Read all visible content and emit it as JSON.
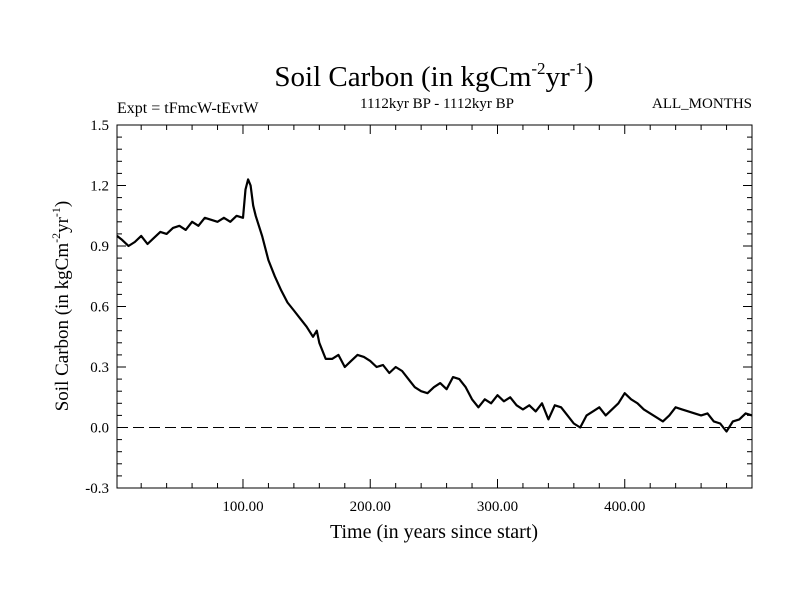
{
  "chart_data": {
    "type": "line",
    "title_main": "Soil Carbon (in kgCm",
    "title_sup1": "-2",
    "title_mid": "yr",
    "title_sup2": "-1",
    "title_end": ")",
    "subtitle_left": "Expt = tFmcW-tEvtW",
    "subtitle_center": "1112kyr BP - 1112kyr BP",
    "subtitle_right": "ALL_MONTHS",
    "xlabel": "Time (in years since start)",
    "ylabel_main": "Soil Carbon (in kgCm",
    "ylabel_sup1": "-2",
    "ylabel_mid": "yr",
    "ylabel_sup2": "-1",
    "ylabel_end": ")",
    "xlim": [
      1,
      500
    ],
    "ylim": [
      -0.3,
      1.5
    ],
    "xticks": [
      100,
      200,
      300,
      400
    ],
    "xtick_labels": [
      "100.00",
      "200.00",
      "300.00",
      "400.00"
    ],
    "yticks": [
      -0.3,
      0.0,
      0.3,
      0.6,
      0.9,
      1.2,
      1.5
    ],
    "ytick_labels": [
      "-0.3",
      "0.0",
      "0.3",
      "0.6",
      "0.9",
      "1.2",
      "1.5"
    ],
    "reference_line": 0.0,
    "series": [
      {
        "name": "Soil Carbon",
        "x": [
          1,
          5,
          10,
          15,
          20,
          25,
          30,
          35,
          40,
          45,
          50,
          55,
          60,
          65,
          70,
          75,
          80,
          85,
          90,
          95,
          100,
          102,
          104,
          106,
          108,
          110,
          115,
          120,
          125,
          130,
          135,
          140,
          145,
          150,
          155,
          158,
          160,
          165,
          170,
          175,
          180,
          185,
          190,
          195,
          200,
          205,
          210,
          215,
          220,
          225,
          230,
          235,
          240,
          245,
          250,
          255,
          260,
          265,
          270,
          275,
          280,
          285,
          290,
          295,
          300,
          305,
          310,
          315,
          320,
          325,
          330,
          335,
          340,
          345,
          350,
          355,
          360,
          365,
          370,
          375,
          380,
          385,
          390,
          395,
          400,
          405,
          410,
          415,
          420,
          425,
          430,
          435,
          440,
          445,
          450,
          455,
          460,
          465,
          470,
          475,
          480,
          485,
          490,
          495,
          500
        ],
        "y": [
          0.95,
          0.93,
          0.9,
          0.92,
          0.95,
          0.91,
          0.94,
          0.97,
          0.96,
          0.99,
          1.0,
          0.98,
          1.02,
          1.0,
          1.04,
          1.03,
          1.02,
          1.04,
          1.02,
          1.05,
          1.04,
          1.18,
          1.23,
          1.2,
          1.1,
          1.05,
          0.95,
          0.83,
          0.75,
          0.68,
          0.62,
          0.58,
          0.54,
          0.5,
          0.45,
          0.48,
          0.42,
          0.34,
          0.34,
          0.36,
          0.3,
          0.33,
          0.36,
          0.35,
          0.33,
          0.3,
          0.31,
          0.27,
          0.3,
          0.28,
          0.24,
          0.2,
          0.18,
          0.17,
          0.2,
          0.22,
          0.19,
          0.25,
          0.24,
          0.2,
          0.14,
          0.1,
          0.14,
          0.12,
          0.16,
          0.13,
          0.15,
          0.11,
          0.09,
          0.11,
          0.08,
          0.12,
          0.04,
          0.11,
          0.1,
          0.06,
          0.02,
          0.0,
          0.06,
          0.08,
          0.1,
          0.06,
          0.09,
          0.12,
          0.17,
          0.14,
          0.12,
          0.09,
          0.07,
          0.05,
          0.03,
          0.06,
          0.1,
          0.09,
          0.08,
          0.07,
          0.06,
          0.07,
          0.03,
          0.02,
          -0.02,
          0.03,
          0.04,
          0.07,
          0.06
        ]
      }
    ]
  }
}
